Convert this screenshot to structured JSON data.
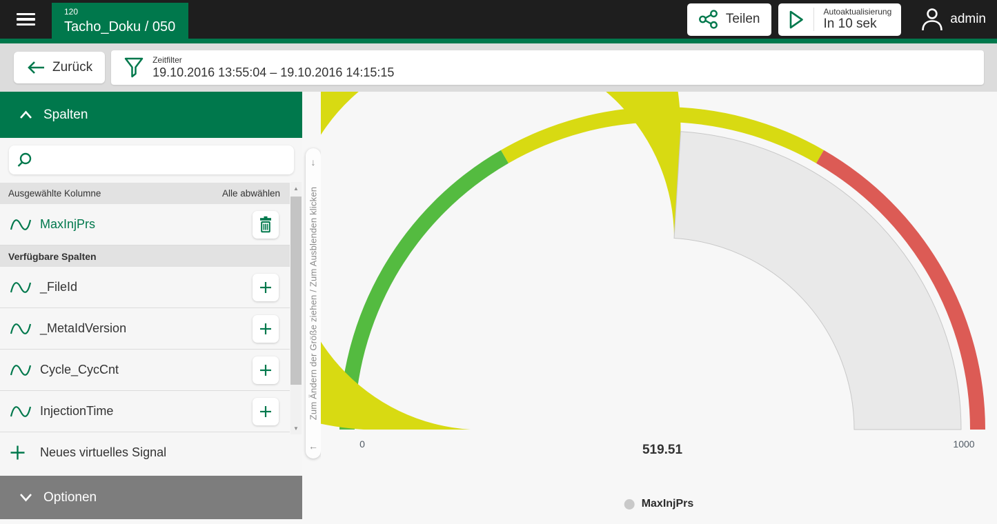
{
  "theme": {
    "brand_green": "#00784c",
    "topbar_bg": "#1e1e1e",
    "toolbar_bg": "#dcdcdc",
    "sidebar_bg": "#f6f6f6",
    "band_bg": "#e2e2e2",
    "footer_bg": "#7d7d7d",
    "main_bg": "#f7f7f7"
  },
  "topbar": {
    "tab_number": "120",
    "tab_title": "Tacho_Doku / 050",
    "share_label": "Teilen",
    "autorefresh_title": "Autoaktualisierung",
    "autorefresh_status": "In 10 sek",
    "user": "admin"
  },
  "toolbar": {
    "back_label": "Zurück",
    "timefilter_label": "Zeitfilter",
    "timefilter_value": "19.10.2016 13:55:04 – 19.10.2016 14:15:15"
  },
  "sidebar": {
    "header_label": "Spalten",
    "search_placeholder": "",
    "selected_section": {
      "title": "Ausgewählte Kolumne",
      "action": "Alle abwählen",
      "items": [
        {
          "label": "MaxInjPrs"
        }
      ]
    },
    "available_section": {
      "title": "Verfügbare Spalten",
      "items": [
        {
          "label": "_FileId"
        },
        {
          "label": "_MetaIdVersion"
        },
        {
          "label": "Cycle_CycCnt"
        },
        {
          "label": "InjectionTime"
        }
      ]
    },
    "new_signal_label": "Neues virtuelles Signal",
    "footer_label": "Optionen"
  },
  "resize_handle": {
    "text": "Zum Ändern der Größe ziehen / Zum Ausblenden klicken"
  },
  "chart_data": {
    "type": "gauge",
    "series_name": "MaxInjPrs",
    "value": 519.51,
    "value_label": "519.51",
    "min": 0,
    "max": 1000,
    "min_label": "0",
    "max_label": "1000",
    "zones": [
      {
        "from": 0,
        "to": 333.33,
        "color": "#54bb40"
      },
      {
        "from": 333.33,
        "to": 666.67,
        "color": "#d8da12"
      },
      {
        "from": 666.67,
        "to": 1000,
        "color": "#dc5b55"
      }
    ],
    "value_fill_color": "#d8da12",
    "rest_fill_color": "#e9e9e9",
    "rest_stroke_color": "#c8c8c8",
    "legend": [
      {
        "label": "MaxInjPrs",
        "color": "#c9c9c9"
      }
    ]
  }
}
